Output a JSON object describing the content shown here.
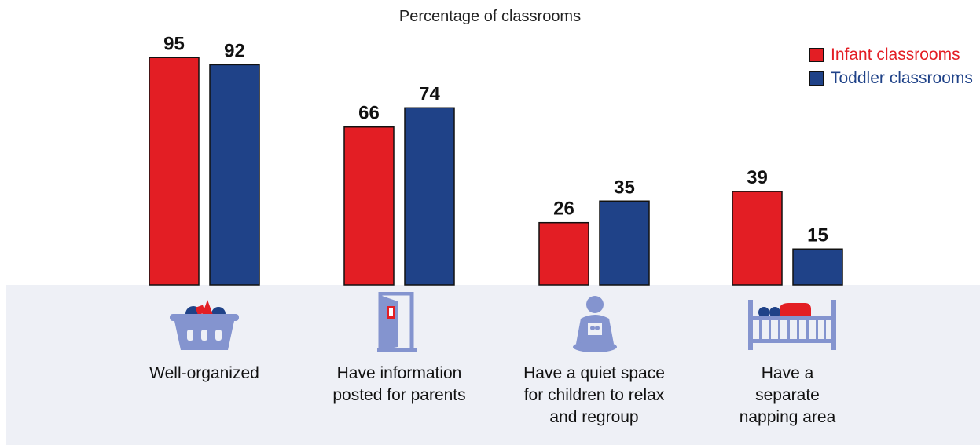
{
  "chart_data": {
    "type": "bar",
    "title": "Percentage of classrooms",
    "categories": [
      "Well-organized",
      "Have information posted for parents",
      "Have a quiet space for children to relax and regroup",
      "Have a separate napping area"
    ],
    "series": [
      {
        "name": "Infant classrooms",
        "values": [
          95,
          66,
          26,
          39
        ]
      },
      {
        "name": "Toddler classrooms",
        "values": [
          92,
          74,
          35,
          15
        ]
      }
    ],
    "ylim": [
      0,
      100
    ],
    "grid": false,
    "legend": "top-right",
    "colors": {
      "infant": "#e31e24",
      "toddler": "#1f4288"
    }
  },
  "captions": [
    {
      "lines": [
        "Well-organized"
      ]
    },
    {
      "lines": [
        "Have information",
        "posted for parents"
      ]
    },
    {
      "lines": [
        "Have a quiet space",
        "for children to relax",
        "and regroup"
      ]
    },
    {
      "lines": [
        "Have a",
        "separate",
        "napping area"
      ]
    }
  ],
  "icons": [
    "toy-basket-icon",
    "door-icon",
    "child-with-book-icon",
    "crib-icon"
  ],
  "icon_color": "#8494cf"
}
